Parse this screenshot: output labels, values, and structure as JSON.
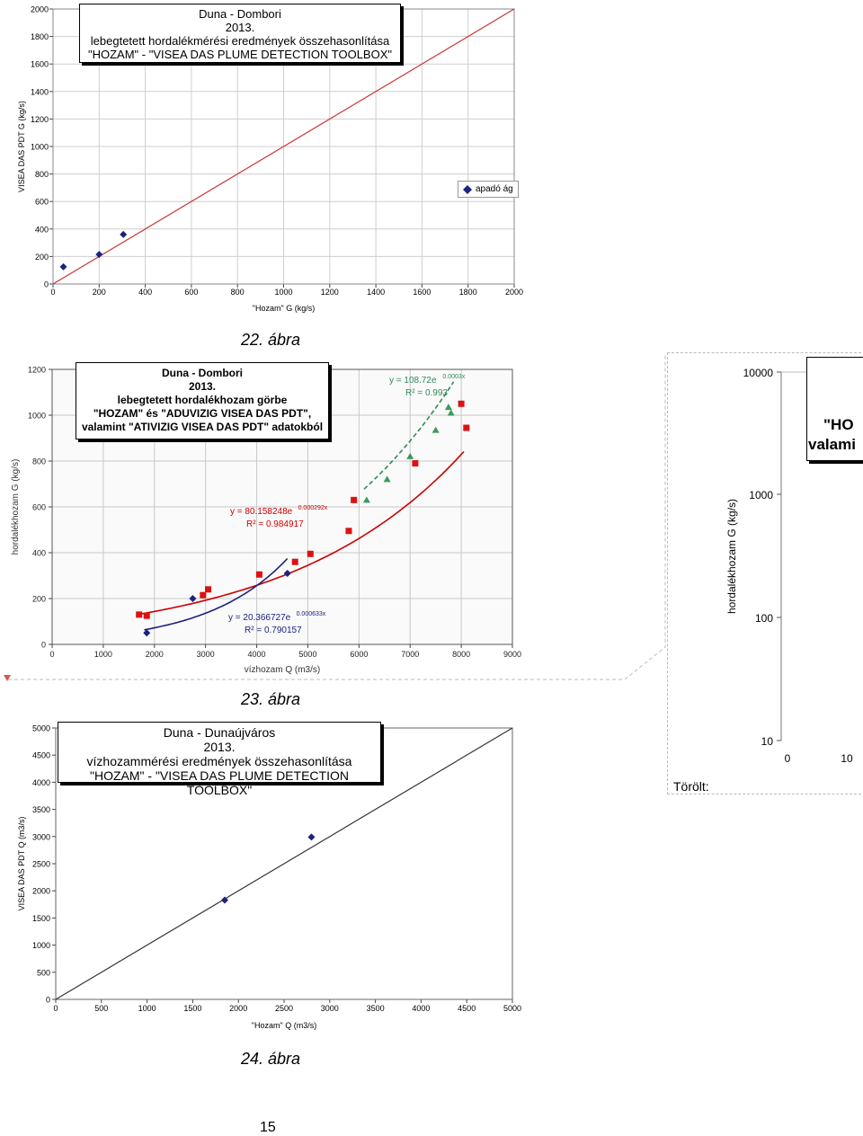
{
  "chart_data": [
    {
      "type": "scatter",
      "title": "Duna - Dombori",
      "title_lines": [
        "Duna - Dombori",
        "2013.",
        "lebegtetett hordalékmérési eredmények összehasonlítása",
        "\"HOZAM\"   -   \"VISEA DAS PLUME DETECTION TOOLBOX\""
      ],
      "xlabel": "\"Hozam\" G (kg/s)",
      "ylabel": "VISEA DAS PDT G (kg/s)",
      "xlim": [
        0,
        2000
      ],
      "ylim": [
        0,
        2000
      ],
      "xticks": [
        "0",
        "200",
        "400",
        "600",
        "800",
        "1000",
        "1200",
        "1400",
        "1600",
        "1800",
        "2000"
      ],
      "yticks": [
        "0",
        "200",
        "400",
        "600",
        "800",
        "1000",
        "1200",
        "1400",
        "1600",
        "1800",
        "2000"
      ],
      "grid": true,
      "legend_position": "right",
      "series": [
        {
          "name": "apadó ág",
          "color": "#1a237e",
          "marker": "diamond",
          "points": [
            [
              45,
              125
            ],
            [
              200,
              215
            ],
            [
              305,
              360
            ]
          ]
        }
      ],
      "reference_line": {
        "from": [
          0,
          0
        ],
        "to": [
          2000,
          2000
        ],
        "color": "#cc3333"
      }
    },
    {
      "type": "scatter",
      "title_lines": [
        "Duna - Dombori",
        "2013.",
        "lebegtetett hordalékhozam görbe",
        "\"HOZAM\" és \"ADUVIZIG VISEA DAS PDT\",",
        "valamint \"ATIVIZIG VISEA DAS PDT\" adatokból"
      ],
      "xlabel": "vízhozam Q (m3/s)",
      "ylabel": "hordalékhozam G (kg/s)",
      "xlim": [
        0,
        9000
      ],
      "ylim": [
        0,
        1200
      ],
      "xticks": [
        "0",
        "1000",
        "2000",
        "3000",
        "4000",
        "5000",
        "6000",
        "7000",
        "8000",
        "9000"
      ],
      "yticks": [
        "0",
        "200",
        "400",
        "600",
        "800",
        "1000",
        "1200"
      ],
      "grid": true,
      "annotations": [
        {
          "label_eq": "y = 108.72e",
          "label_exp": "0.0003x",
          "label_r2": "R² = 0.993",
          "color": "#2e8b57"
        },
        {
          "label_eq": "y = 80.158248e",
          "label_exp": "0.000292x",
          "label_r2": "R² = 0.984917",
          "color": "#cc0000"
        },
        {
          "label_eq": "y = 20.366727e",
          "label_exp": "0.000633x",
          "label_r2": "R² = 0.790157",
          "color": "#1a237e"
        }
      ],
      "series": [
        {
          "color": "#dd1111",
          "marker": "square",
          "points": [
            [
              1700,
              130
            ],
            [
              1850,
              125
            ],
            [
              2950,
              215
            ],
            [
              3050,
              240
            ],
            [
              4050,
              305
            ],
            [
              4750,
              360
            ],
            [
              5050,
              395
            ],
            [
              5800,
              495
            ],
            [
              5900,
              630
            ],
            [
              7100,
              790
            ],
            [
              8000,
              1050
            ],
            [
              8100,
              945
            ]
          ]
        },
        {
          "color": "#3a9a5e",
          "marker": "triangle",
          "points": [
            [
              6150,
              630
            ],
            [
              6550,
              720
            ],
            [
              7000,
              820
            ],
            [
              7500,
              935
            ],
            [
              7750,
              1035
            ],
            [
              7800,
              1010
            ]
          ]
        },
        {
          "color": "#1a237e",
          "marker": "diamond",
          "points": [
            [
              1850,
              50
            ],
            [
              2750,
              200
            ],
            [
              4600,
              310
            ]
          ]
        }
      ],
      "trendlines": [
        {
          "color": "#cc0000",
          "a": 80.158248,
          "b": 0.000292,
          "x_from": 1700,
          "x_to": 8050
        },
        {
          "color": "#2e8b57",
          "a": 108.72,
          "b": 0.0003,
          "x_from": 6100,
          "x_to": 7850
        },
        {
          "color": "#1a237e",
          "a": 20.366727,
          "b": 0.000633,
          "x_from": 1800,
          "x_to": 4600
        }
      ]
    },
    {
      "type": "line",
      "ylabel": "hordalékhozam G (kg/s)",
      "yscale": "log",
      "yticks": [
        "10",
        "100",
        "1000",
        "10000"
      ],
      "xticks": [
        "0",
        "10"
      ],
      "partial_title": [
        "\"HO",
        "valami"
      ]
    },
    {
      "type": "scatter",
      "title_lines": [
        "Duna - Dunaújváros",
        "2013.",
        "vízhozammérési eredmények összehasonlítása",
        "\"HOZAM\"   -   \"VISEA DAS PLUME DETECTION TOOLBOX\""
      ],
      "xlabel": "\"Hozam\" Q (m3/s)",
      "ylabel": "VISEA DAS PDT Q (m3/s)",
      "xlim": [
        0,
        5000
      ],
      "ylim": [
        0,
        5000
      ],
      "xticks": [
        "0",
        "500",
        "1000",
        "1500",
        "2000",
        "2500",
        "3000",
        "3500",
        "4000",
        "4500",
        "5000"
      ],
      "yticks": [
        "0",
        "500",
        "1000",
        "1500",
        "2000",
        "2500",
        "3000",
        "3500",
        "4000",
        "4500",
        "5000"
      ],
      "grid": false,
      "series": [
        {
          "color": "#1a237e",
          "marker": "diamond",
          "points": [
            [
              1850,
              1830
            ],
            [
              2800,
              2990
            ]
          ]
        }
      ],
      "reference_line": {
        "from": [
          0,
          0
        ],
        "to": [
          5000,
          5000
        ],
        "color": "#333333"
      }
    }
  ],
  "captions": {
    "fig22": "22. ábra",
    "fig23": "23. ábra",
    "fig24": "24. ábra"
  },
  "deleted_label": "Törölt:",
  "page_number": "15"
}
